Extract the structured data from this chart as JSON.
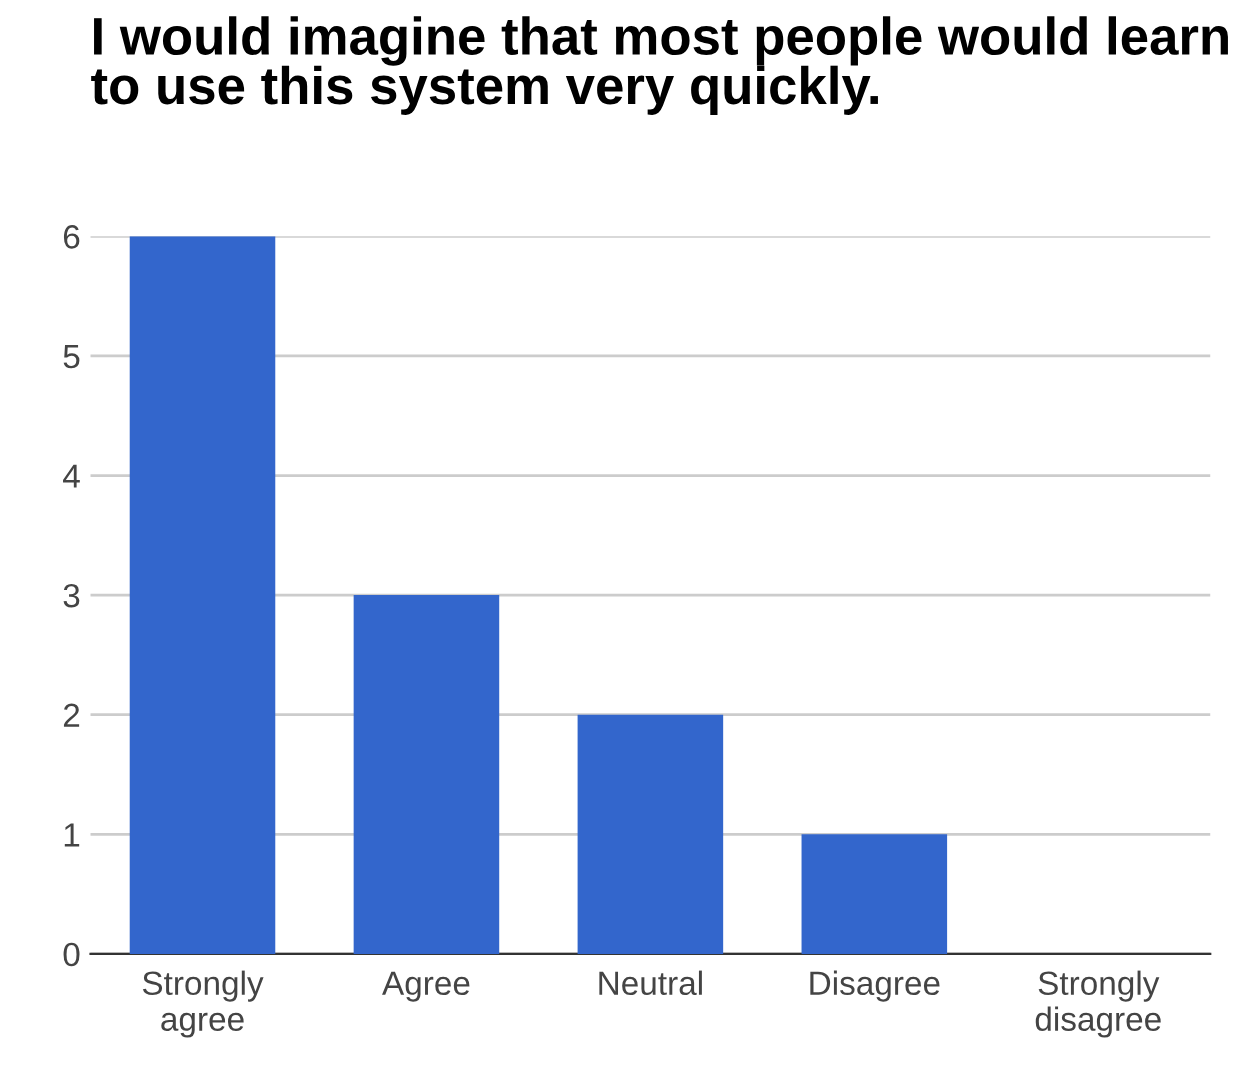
{
  "chart_data": {
    "type": "bar",
    "title": "I would imagine that most people would learn to use this system very quickly.",
    "categories": [
      "Strongly\nagree",
      "Agree",
      "Neutral",
      "Disagree",
      "Strongly\ndisagree"
    ],
    "values": [
      6,
      3,
      2,
      1,
      0
    ],
    "color": "#3366cc",
    "ylim": [
      0,
      6
    ],
    "yticks": [
      0,
      1,
      2,
      3,
      4,
      5,
      6
    ],
    "grid": "y",
    "legend": false
  }
}
